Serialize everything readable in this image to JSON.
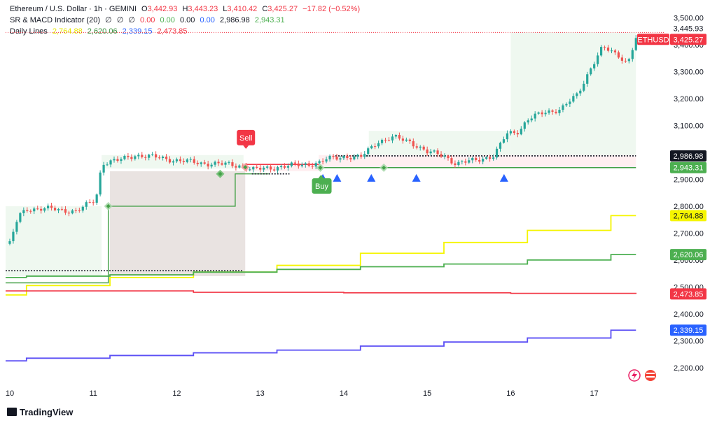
{
  "legend": {
    "line1": {
      "symbol": "Ethereum / U.S. Dollar · 1h · GEMINI",
      "o_label": "O",
      "o": "3,442.93",
      "h_label": "H",
      "h": "3,443.23",
      "l_label": "L",
      "l": "3,410.42",
      "c_label": "C",
      "c": "3,425.27",
      "change": "−17.82 (−0.52%)"
    },
    "line2": {
      "name": "SR & MACD Indicator (20)",
      "v1": "∅",
      "v2": "∅",
      "v3": "∅",
      "v4": "0.00",
      "v5": "0.00",
      "v6": "0.00",
      "v7": "0.00",
      "v8": "2,986.98",
      "v9": "2,943.31"
    },
    "line3": {
      "name": "Daily Lines",
      "v1": "2,764.88",
      "v2": "2,620.06",
      "v3": "2,339.15",
      "v4": "2,473.85"
    }
  },
  "footer": {
    "brand": "TradingView"
  },
  "colors": {
    "up": "#26a69a",
    "down": "#ef5350",
    "yellow": "#f5f500",
    "green": "#4caf50",
    "red": "#f23645",
    "blue": "#5b4ff5",
    "buy": "#4caf50",
    "sell": "#f23645",
    "arrow": "#2962ff"
  },
  "chart_data": {
    "type": "candlestick",
    "ylim": [
      2150,
      3530
    ],
    "xlim": [
      9.95,
      17.85
    ],
    "y_ticks": [
      2200,
      2300,
      2400,
      2500,
      2600,
      2700,
      2800,
      2900,
      3000,
      3100,
      3200,
      3300,
      3400,
      3500
    ],
    "y_tick_labels": [
      "2,200.00",
      "2,300.00",
      "2,400.00",
      "2,500.00",
      "2,600.00",
      "2,700.00",
      "2,800.00",
      "2,900.00",
      "",
      "3,100.00",
      "3,200.00",
      "3,300.00",
      "3,400.00",
      "3,500.00"
    ],
    "x_ticks": [
      10,
      11,
      12,
      13,
      14,
      15,
      16,
      17
    ],
    "x_tick_labels": [
      "10",
      "11",
      "12",
      "13",
      "14",
      "15",
      "16",
      "17"
    ],
    "price_path": [
      [
        10.0,
        2660
      ],
      [
        10.1,
        2760
      ],
      [
        10.2,
        2790
      ],
      [
        10.5,
        2790
      ],
      [
        10.8,
        2780
      ],
      [
        11.0,
        2820
      ],
      [
        11.05,
        2850
      ],
      [
        11.1,
        2960
      ],
      [
        11.3,
        2970
      ],
      [
        11.5,
        2990
      ],
      [
        11.8,
        2980
      ],
      [
        12.0,
        2970
      ],
      [
        12.3,
        2960
      ],
      [
        12.6,
        2955
      ],
      [
        12.8,
        2950
      ],
      [
        12.9,
        2935
      ],
      [
        13.2,
        2945
      ],
      [
        13.5,
        2955
      ],
      [
        13.7,
        2960
      ],
      [
        13.8,
        2975
      ],
      [
        14.0,
        2985
      ],
      [
        14.2,
        2980
      ],
      [
        14.4,
        3040
      ],
      [
        14.6,
        3055
      ],
      [
        14.8,
        3040
      ],
      [
        15.0,
        3000
      ],
      [
        15.2,
        2990
      ],
      [
        15.35,
        2955
      ],
      [
        15.6,
        2975
      ],
      [
        15.8,
        2985
      ],
      [
        15.95,
        3070
      ],
      [
        16.1,
        3080
      ],
      [
        16.2,
        3120
      ],
      [
        16.4,
        3150
      ],
      [
        16.6,
        3160
      ],
      [
        16.8,
        3215
      ],
      [
        16.95,
        3310
      ],
      [
        17.1,
        3390
      ],
      [
        17.3,
        3360
      ],
      [
        17.4,
        3330
      ],
      [
        17.5,
        3425
      ]
    ],
    "current_price": 3425.27,
    "high_of_day": 3445.93,
    "series": [
      {
        "name": "Daily Lines",
        "color": "yellow",
        "steps": [
          [
            9.95,
            2470
          ],
          [
            10.2,
            2505
          ],
          [
            11.2,
            2535
          ],
          [
            12.2,
            2555
          ],
          [
            13.2,
            2580
          ],
          [
            14.2,
            2625
          ],
          [
            15.2,
            2665
          ],
          [
            16.2,
            2710
          ],
          [
            17.2,
            2764.88
          ],
          [
            17.5,
            2764.88
          ]
        ]
      },
      {
        "name": "Daily Lines",
        "color": "green",
        "steps": [
          [
            9.95,
            2535
          ],
          [
            10.2,
            2540
          ],
          [
            11.2,
            2545
          ],
          [
            12.2,
            2555
          ],
          [
            13.2,
            2565
          ],
          [
            14.2,
            2575
          ],
          [
            15.2,
            2585
          ],
          [
            16.2,
            2600
          ],
          [
            17.2,
            2620.06
          ],
          [
            17.5,
            2620.06
          ]
        ]
      },
      {
        "name": "Daily Lines",
        "color": "red",
        "steps": [
          [
            9.95,
            2485
          ],
          [
            11.0,
            2485
          ],
          [
            12.2,
            2480
          ],
          [
            14.0,
            2478
          ],
          [
            16.0,
            2476
          ],
          [
            17.5,
            2473.85
          ]
        ]
      },
      {
        "name": "Daily Lines",
        "color": "blue",
        "steps": [
          [
            9.95,
            2225
          ],
          [
            10.2,
            2235
          ],
          [
            11.2,
            2245
          ],
          [
            12.2,
            2255
          ],
          [
            13.2,
            2265
          ],
          [
            14.2,
            2280
          ],
          [
            15.2,
            2295
          ],
          [
            16.2,
            2310
          ],
          [
            17.2,
            2339.15
          ],
          [
            17.5,
            2339.15
          ]
        ]
      }
    ],
    "sr_lines": {
      "resistance": 2986.98,
      "support": 2943.31
    },
    "levels": [
      {
        "value": 3425.27,
        "label": "3,425.27",
        "symbol": "ETHUSD",
        "bg": "#f23645",
        "fg": "#ffffff"
      },
      {
        "value": 3445.93,
        "label": "3,445.93",
        "bg": "#ffffff",
        "fg": "#131722"
      },
      {
        "value": 2986.98,
        "label": "2,986.98",
        "bg": "#131722",
        "fg": "#ffffff"
      },
      {
        "value": 2943.31,
        "label": "2,943.31",
        "bg": "#4caf50",
        "fg": "#ffffff"
      },
      {
        "value": 2764.88,
        "label": "2,764.88",
        "bg": "#f5f500",
        "fg": "#131722"
      },
      {
        "value": 2620.06,
        "label": "2,620.06",
        "bg": "#4caf50",
        "fg": "#ffffff"
      },
      {
        "value": 2473.85,
        "label": "2,473.85",
        "bg": "#f23645",
        "fg": "#ffffff"
      },
      {
        "value": 2339.15,
        "label": "2,339.15",
        "bg": "#2962ff",
        "fg": "#ffffff"
      }
    ],
    "signals": [
      {
        "type": "sell",
        "x": 12.82,
        "y": 2935,
        "label": "Sell"
      },
      {
        "type": "buy",
        "x": 13.72,
        "y": 2940,
        "label": "Buy"
      }
    ],
    "arrows": [
      13.75,
      13.92,
      14.33,
      14.87,
      15.92
    ]
  }
}
